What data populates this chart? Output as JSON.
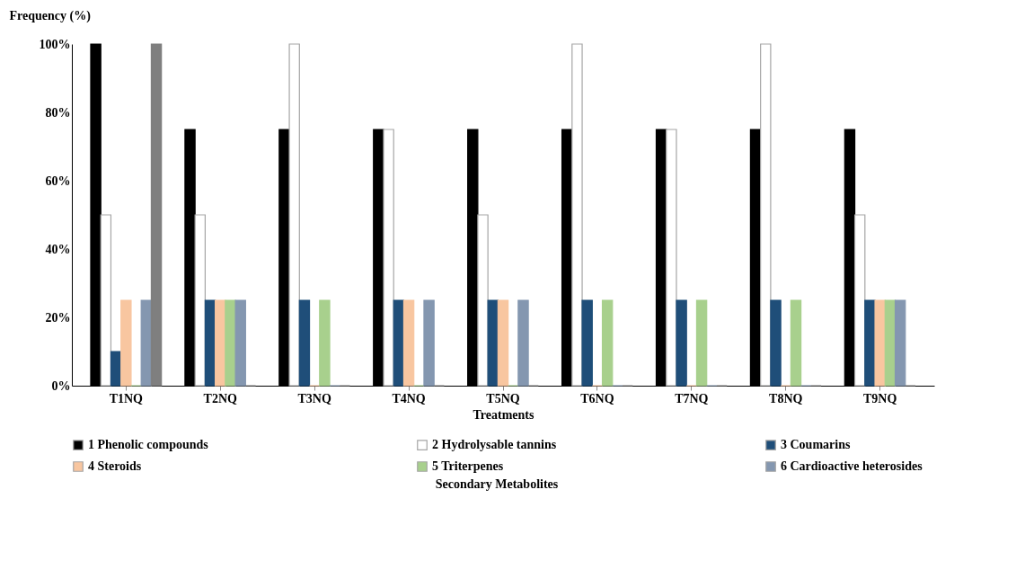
{
  "chart_data": {
    "type": "bar",
    "xlabel": "Treatments",
    "ylabel": "Frequency (%)",
    "legend_title": "Secondary Metabolites",
    "legend": "bottom",
    "grid": false,
    "categories": [
      "T1NQ",
      "T2NQ",
      "T3NQ",
      "T4NQ",
      "T5NQ",
      "T6NQ",
      "T7NQ",
      "T8NQ",
      "T9NQ"
    ],
    "ylim": [
      0,
      100
    ],
    "yticks": [
      {
        "value": 0,
        "label": "0%"
      },
      {
        "value": 20,
        "label": "20%"
      },
      {
        "value": 40,
        "label": "40%"
      },
      {
        "value": 60,
        "label": "60%"
      },
      {
        "value": 80,
        "label": "80%"
      },
      {
        "value": 100,
        "label": "100%"
      }
    ],
    "series": [
      {
        "name": "1 Phenolic compounds",
        "color": "#000000",
        "values": [
          100,
          75,
          75,
          75,
          75,
          75,
          75,
          75,
          75
        ]
      },
      {
        "name": "2 Hydrolysable tannins",
        "color": "#ffffff",
        "values": [
          50,
          50,
          100,
          75,
          50,
          100,
          75,
          100,
          50
        ]
      },
      {
        "name": "3 Coumarins",
        "color": "#1f4e79",
        "values": [
          10,
          25,
          25,
          25,
          25,
          25,
          25,
          25,
          25
        ]
      },
      {
        "name": "4 Steroids",
        "color": "#f8c6a0",
        "values": [
          25,
          25,
          0,
          25,
          25,
          0,
          0,
          0,
          25
        ]
      },
      {
        "name": "5 Triterpenes",
        "color": "#a8d08d",
        "values": [
          0,
          25,
          25,
          0,
          0,
          25,
          25,
          25,
          25
        ]
      },
      {
        "name": "6 Cardioactive heterosides",
        "color": "#8497b0",
        "values": [
          25,
          25,
          0,
          25,
          25,
          0,
          0,
          0,
          25
        ]
      },
      {
        "color": "#7f7f7f",
        "values": [
          100,
          0,
          0,
          0,
          0,
          0,
          0,
          0,
          0
        ]
      }
    ]
  }
}
